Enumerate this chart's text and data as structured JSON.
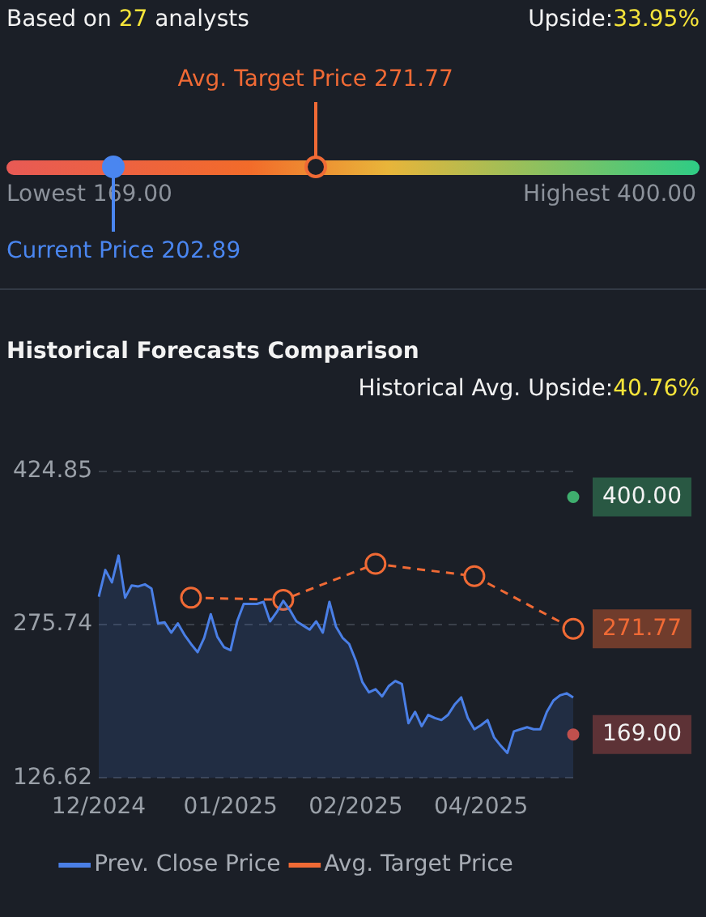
{
  "chart_data": [
    {
      "type": "other",
      "title": "Based on 27 analysts",
      "subtitle": "Upside:33.95%",
      "annotations": [
        "Lowest 169.00",
        "Highest 400.00",
        "Avg. Target Price 271.77",
        "Current Price 202.89"
      ]
    },
    {
      "type": "line",
      "title": "Historical Forecasts Comparison",
      "subtitle": "Historical Avg. Upside:40.76%",
      "categories": [
        "12/2024",
        null,
        null,
        null,
        null,
        null,
        null,
        null,
        null,
        null,
        null,
        null,
        null,
        null,
        null,
        null,
        null,
        null,
        null,
        null,
        "01/2025",
        null,
        null,
        null,
        null,
        null,
        null,
        null,
        null,
        null,
        null,
        null,
        null,
        null,
        null,
        null,
        null,
        null,
        null,
        "02/2025",
        null,
        null,
        null,
        null,
        null,
        null,
        null,
        null,
        null,
        null,
        null,
        null,
        null,
        null,
        null,
        null,
        null,
        null,
        "04/2025",
        null,
        null,
        null,
        null,
        null,
        null,
        null,
        null,
        null,
        null,
        null,
        null,
        null,
        null
      ],
      "ylim": [
        126.62,
        424.85
      ],
      "yticks": [
        424.85,
        275.74,
        126.62
      ],
      "grid": "y",
      "legend": "bottom",
      "series": [
        {
          "name": "Prev. Close Price",
          "type": "area",
          "color": "#4a7fe6",
          "marker": "none",
          "values": [
            303,
            329,
            317,
            343,
            302,
            314,
            313,
            315,
            311,
            277,
            278,
            268,
            277,
            266,
            257,
            249,
            263,
            286,
            264,
            254,
            251,
            279,
            296,
            296,
            296,
            298,
            279,
            288,
            299,
            290,
            279,
            275,
            271,
            279,
            268,
            298,
            274,
            263,
            257,
            241,
            220,
            210,
            213,
            206,
            216,
            221,
            218,
            180,
            191,
            177,
            188,
            185,
            183,
            188,
            198,
            205,
            185,
            174,
            178,
            183,
            166,
            158,
            151,
            172,
            174,
            176,
            174,
            174,
            191,
            202,
            207,
            209,
            205
          ]
        },
        {
          "name": "Avg. Target Price",
          "type": "line",
          "color": "#f06a35",
          "marker": "circle",
          "line_style": "dashed",
          "values": [
            null,
            null,
            null,
            null,
            null,
            null,
            null,
            null,
            null,
            null,
            null,
            null,
            null,
            null,
            302,
            null,
            null,
            null,
            null,
            null,
            null,
            null,
            null,
            null,
            null,
            null,
            null,
            null,
            300,
            null,
            null,
            null,
            null,
            null,
            null,
            null,
            null,
            null,
            null,
            null,
            null,
            null,
            335,
            null,
            null,
            null,
            null,
            null,
            null,
            null,
            null,
            null,
            null,
            null,
            null,
            null,
            null,
            323,
            null,
            null,
            null,
            null,
            null,
            null,
            null,
            null,
            null,
            null,
            null,
            null,
            null,
            null,
            271.77
          ],
          "value_labels": [
            null,
            null,
            null,
            null,
            null,
            null,
            null,
            null,
            null,
            null,
            null,
            null,
            null,
            null,
            null,
            null,
            null,
            null,
            null,
            null,
            null,
            null,
            null,
            null,
            null,
            null,
            null,
            null,
            null,
            null,
            null,
            null,
            null,
            null,
            null,
            null,
            null,
            null,
            null,
            null,
            null,
            null,
            null,
            null,
            null,
            null,
            null,
            null,
            null,
            null,
            null,
            null,
            null,
            null,
            null,
            null,
            null,
            null,
            null,
            null,
            null,
            null,
            null,
            null,
            null,
            null,
            null,
            null,
            null,
            null,
            null,
            null,
            "271.77"
          ]
        },
        {
          "type": "scatter",
          "color": "#3fae6e",
          "marker": "circle",
          "values": [
            null,
            null,
            null,
            null,
            null,
            null,
            null,
            null,
            null,
            null,
            null,
            null,
            null,
            null,
            null,
            null,
            null,
            null,
            null,
            null,
            null,
            null,
            null,
            null,
            null,
            null,
            null,
            null,
            null,
            null,
            null,
            null,
            null,
            null,
            null,
            null,
            null,
            null,
            null,
            null,
            null,
            null,
            null,
            null,
            null,
            null,
            null,
            null,
            null,
            null,
            null,
            null,
            null,
            null,
            null,
            null,
            null,
            null,
            null,
            null,
            null,
            null,
            null,
            null,
            null,
            null,
            null,
            null,
            null,
            null,
            null,
            null,
            400
          ],
          "value_labels": [
            null,
            null,
            null,
            null,
            null,
            null,
            null,
            null,
            null,
            null,
            null,
            null,
            null,
            null,
            null,
            null,
            null,
            null,
            null,
            null,
            null,
            null,
            null,
            null,
            null,
            null,
            null,
            null,
            null,
            null,
            null,
            null,
            null,
            null,
            null,
            null,
            null,
            null,
            null,
            null,
            null,
            null,
            null,
            null,
            null,
            null,
            null,
            null,
            null,
            null,
            null,
            null,
            null,
            null,
            null,
            null,
            null,
            null,
            null,
            null,
            null,
            null,
            null,
            null,
            null,
            null,
            null,
            null,
            null,
            null,
            null,
            null,
            "400.00"
          ]
        },
        {
          "type": "scatter",
          "color": "#c0504d",
          "marker": "circle",
          "values": [
            null,
            null,
            null,
            null,
            null,
            null,
            null,
            null,
            null,
            null,
            null,
            null,
            null,
            null,
            null,
            null,
            null,
            null,
            null,
            null,
            null,
            null,
            null,
            null,
            null,
            null,
            null,
            null,
            null,
            null,
            null,
            null,
            null,
            null,
            null,
            null,
            null,
            null,
            null,
            null,
            null,
            null,
            null,
            null,
            null,
            null,
            null,
            null,
            null,
            null,
            null,
            null,
            null,
            null,
            null,
            null,
            null,
            null,
            null,
            null,
            null,
            null,
            null,
            null,
            null,
            null,
            null,
            null,
            null,
            null,
            null,
            null,
            169
          ],
          "value_labels": [
            null,
            null,
            null,
            null,
            null,
            null,
            null,
            null,
            null,
            null,
            null,
            null,
            null,
            null,
            null,
            null,
            null,
            null,
            null,
            null,
            null,
            null,
            null,
            null,
            null,
            null,
            null,
            null,
            null,
            null,
            null,
            null,
            null,
            null,
            null,
            null,
            null,
            null,
            null,
            null,
            null,
            null,
            null,
            null,
            null,
            null,
            null,
            null,
            null,
            null,
            null,
            null,
            null,
            null,
            null,
            null,
            null,
            null,
            null,
            null,
            null,
            null,
            null,
            null,
            null,
            null,
            null,
            null,
            null,
            null,
            null,
            null,
            "169.00"
          ]
        }
      ]
    }
  ]
}
